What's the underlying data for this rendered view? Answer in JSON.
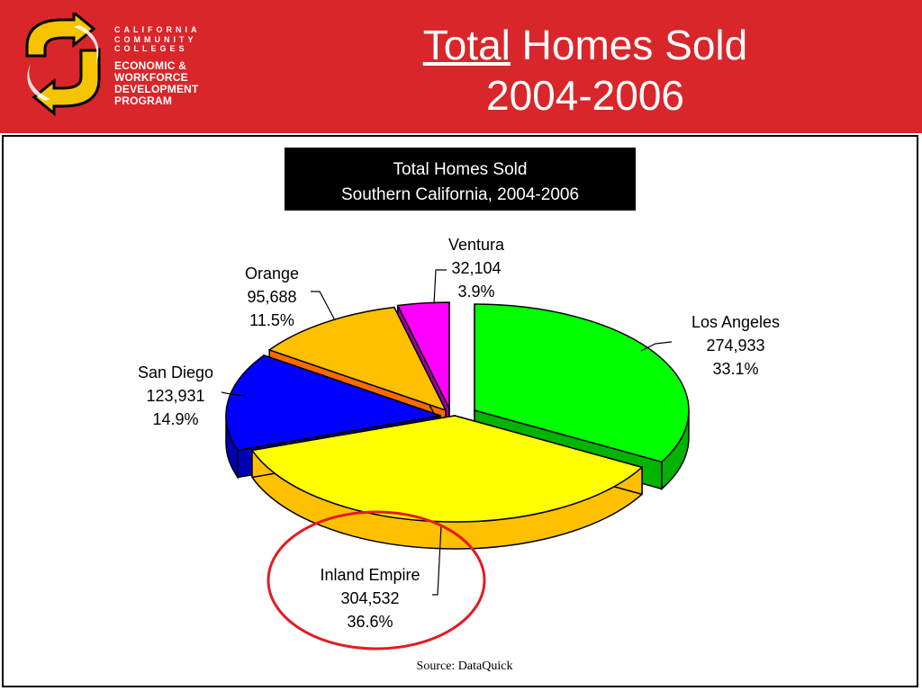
{
  "header": {
    "org_top": "CALIFORNIA\nCOMMUNITY\nCOLLEGES",
    "org_bottom": "ECONOMIC &\nWORKFORCE\nDEVELOPMENT\nPROGRAM",
    "title_underlined": "Total",
    "title_rest": " Homes Sold",
    "title_line2": "2004-2006"
  },
  "colors": {
    "header_bg": "#d8262a",
    "logo_yellow": "#f5c400",
    "highlight_circle": "#e31b23"
  },
  "chart_data": {
    "type": "pie",
    "title_line1": "Total Homes Sold",
    "title_line2": "Southern California, 2004-2006",
    "source": "Source:   DataQuick",
    "slices": [
      {
        "name": "Los Angeles",
        "value": 274933,
        "value_label": "274,933",
        "percent": "33.1%",
        "color": "#00ff00",
        "side": "#00b400"
      },
      {
        "name": "Inland Empire",
        "value": 304532,
        "value_label": "304,532",
        "percent": "36.6%",
        "color": "#ffff00",
        "side": "#ffc000"
      },
      {
        "name": "San Diego",
        "value": 123931,
        "value_label": "123,931",
        "percent": "14.9%",
        "color": "#0000ff",
        "side": "#0000b4"
      },
      {
        "name": "Orange",
        "value": 95688,
        "value_label": "95,688",
        "percent": "11.5%",
        "color": "#ffc000",
        "side": "#ff6a00"
      },
      {
        "name": "Ventura",
        "value": 32104,
        "value_label": "32,104",
        "percent": "3.9%",
        "color": "#ff00ff",
        "side": "#a000a8"
      }
    ],
    "highlighted": "Inland Empire",
    "style": "3d exploded pie"
  }
}
